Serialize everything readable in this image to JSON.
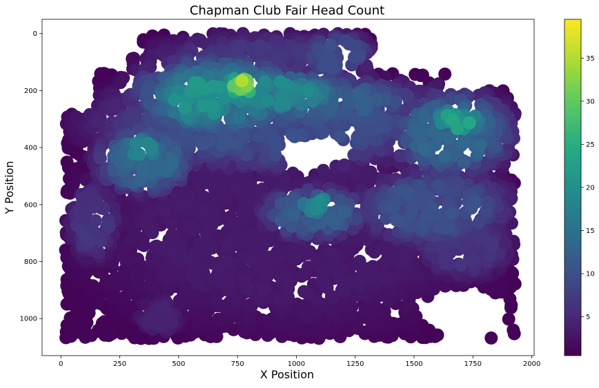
{
  "chart_data": {
    "type": "heatmap",
    "title": "Chapman Club Fair Head Count",
    "xlabel": "X Position",
    "ylabel": "Y Position",
    "xlim": [
      -80,
      2010
    ],
    "ylim": [
      1130,
      -50
    ],
    "y_inverted": true,
    "grid": false,
    "x_ticks": [
      0,
      250,
      500,
      750,
      1000,
      1250,
      1500,
      1750,
      2000
    ],
    "y_ticks": [
      0,
      200,
      400,
      600,
      800,
      1000
    ],
    "colorbar": {
      "colormap": "viridis",
      "range": [
        0.5,
        39.5
      ],
      "ticks": [
        5,
        10,
        15,
        20,
        25,
        30,
        35
      ]
    },
    "regions": [
      {
        "x": [
          20,
          1930
        ],
        "y": [
          280,
          1070
        ],
        "count": 3
      },
      {
        "x": [
          40,
          1920
        ],
        "y": [
          640,
          1070
        ],
        "count": 1.5
      },
      {
        "x": [
          150,
          1640
        ],
        "y": [
          140,
          480
        ],
        "count": 9
      },
      {
        "x": [
          350,
          1320
        ],
        "y": [
          0,
          200
        ],
        "count": 6
      },
      {
        "x": [
          1020,
          1320
        ],
        "y": [
          0,
          150
        ],
        "count": 9
      },
      {
        "x": [
          300,
          1050
        ],
        "y": [
          80,
          360
        ],
        "count": 14
      },
      {
        "x": [
          420,
          760
        ],
        "y": [
          120,
          330
        ],
        "count": 19
      },
      {
        "x": [
          600,
          1200
        ],
        "y": [
          140,
          280
        ],
        "count": 17
      },
      {
        "x": [
          680,
          860
        ],
        "y": [
          150,
          215
        ],
        "count": 31
      },
      {
        "x": [
          150,
          560
        ],
        "y": [
          320,
          560
        ],
        "count": 12
      },
      {
        "x": [
          250,
          430
        ],
        "y": [
          360,
          460
        ],
        "count": 17
      },
      {
        "x": [
          1400,
          1920
        ],
        "y": [
          200,
          500
        ],
        "count": 12
      },
      {
        "x": [
          1580,
          1800
        ],
        "y": [
          250,
          360
        ],
        "count": 21
      },
      {
        "x": [
          850,
          1300
        ],
        "y": [
          540,
          720
        ],
        "count": 11
      },
      {
        "x": [
          1000,
          1180
        ],
        "y": [
          560,
          640
        ],
        "count": 17
      },
      {
        "x": [
          1250,
          1920
        ],
        "y": [
          480,
          740
        ],
        "count": 9
      },
      {
        "x": [
          30,
          250
        ],
        "y": [
          520,
          800
        ],
        "count": 6
      },
      {
        "x": [
          1500,
          1920
        ],
        "y": [
          620,
          860
        ],
        "count": 6
      },
      {
        "x": [
          560,
          1540
        ],
        "y": [
          150,
          320
        ],
        "count": 11
      },
      {
        "x": [
          320,
          520
        ],
        "y": [
          920,
          1060
        ],
        "count": 4
      }
    ],
    "empty_regions": [
      {
        "cx": 1065,
        "cy": 420,
        "rx": 150,
        "ry": 60
      },
      {
        "cx": 1715,
        "cy": 980,
        "rx": 190,
        "ry": 95
      },
      {
        "cx": 1780,
        "cy": 80,
        "rx": 130,
        "ry": 70
      },
      {
        "cx": 190,
        "cy": 40,
        "rx": 130,
        "ry": 90
      },
      {
        "cx": 1400,
        "cy": 30,
        "rx": 60,
        "ry": 40
      }
    ]
  }
}
